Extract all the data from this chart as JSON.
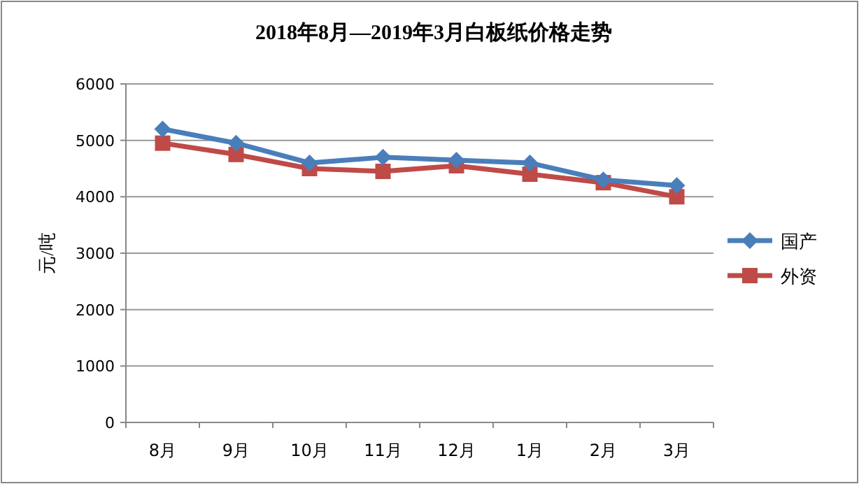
{
  "chart_data": {
    "type": "line",
    "title": "2018年8月—2019年3月白板纸价格走势",
    "ylabel": "元/吨",
    "categories": [
      "8月",
      "9月",
      "10月",
      "11月",
      "12月",
      "1月",
      "2月",
      "3月"
    ],
    "series": [
      {
        "name": "国产",
        "color": "#4a7ebb",
        "marker": "diamond",
        "values": [
          5200,
          4950,
          4600,
          4700,
          4650,
          4600,
          4300,
          4200
        ]
      },
      {
        "name": "外资",
        "color": "#be4b48",
        "marker": "square",
        "values": [
          4950,
          4750,
          4500,
          4450,
          4550,
          4400,
          4250,
          4000
        ]
      }
    ],
    "ylim": [
      0,
      6000
    ],
    "yticks": [
      0,
      1000,
      2000,
      3000,
      4000,
      5000,
      6000
    ],
    "grid": "y",
    "legend": "right"
  }
}
